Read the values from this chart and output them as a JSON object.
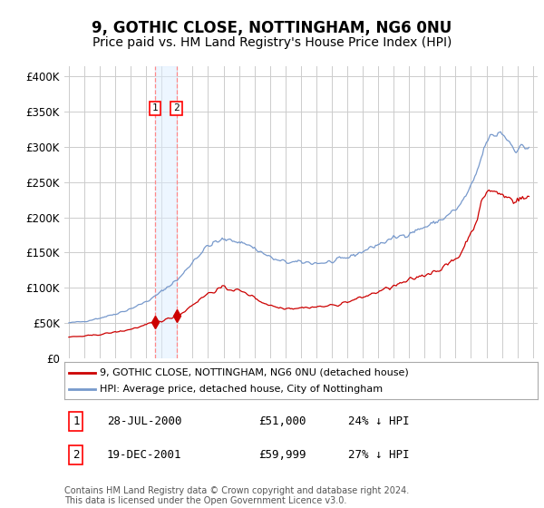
{
  "title": "9, GOTHIC CLOSE, NOTTINGHAM, NG6 0NU",
  "subtitle": "Price paid vs. HM Land Registry's House Price Index (HPI)",
  "title_fontsize": 12,
  "subtitle_fontsize": 10,
  "ylabel_ticks": [
    "£0",
    "£50K",
    "£100K",
    "£150K",
    "£200K",
    "£250K",
    "£300K",
    "£350K",
    "£400K"
  ],
  "ylabel_values": [
    0,
    50000,
    100000,
    150000,
    200000,
    250000,
    300000,
    350000,
    400000
  ],
  "ylim": [
    0,
    415000
  ],
  "xlim_start": 1994.7,
  "xlim_end": 2025.3,
  "background_color": "#ffffff",
  "grid_color": "#cccccc",
  "hpi_color": "#7799cc",
  "price_color": "#cc0000",
  "transaction1_year": 2000.57,
  "transaction1_price": 51000,
  "transaction1_label": "1",
  "transaction1_date": "28-JUL-2000",
  "transaction1_price_str": "£51,000",
  "transaction1_pct": "24% ↓ HPI",
  "transaction2_year": 2001.96,
  "transaction2_price": 59999,
  "transaction2_label": "2",
  "transaction2_date": "19-DEC-2001",
  "transaction2_price_str": "£59,999",
  "transaction2_pct": "27% ↓ HPI",
  "legend_label1": "9, GOTHIC CLOSE, NOTTINGHAM, NG6 0NU (detached house)",
  "legend_label2": "HPI: Average price, detached house, City of Nottingham",
  "footer": "Contains HM Land Registry data © Crown copyright and database right 2024.\nThis data is licensed under the Open Government Licence v3.0.",
  "span_color": "#ddeeff",
  "span_alpha": 0.5
}
